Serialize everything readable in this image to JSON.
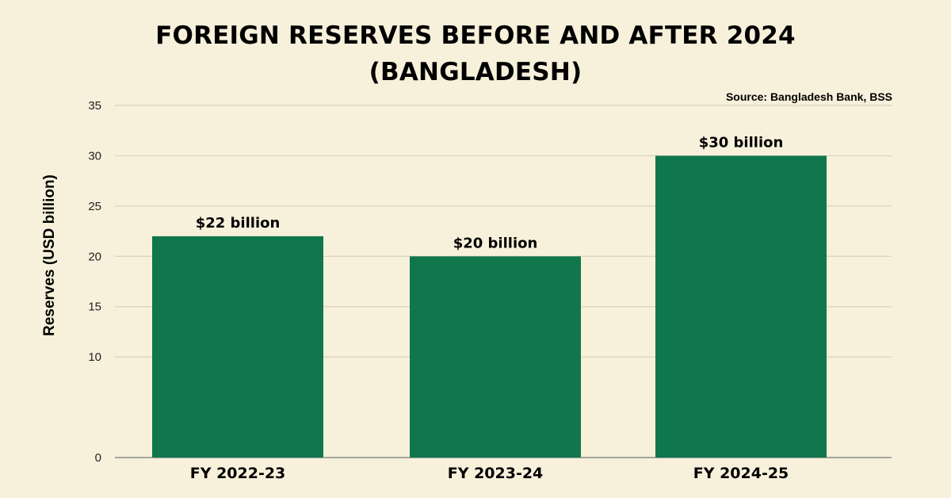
{
  "title_line1": "FOREIGN RESERVES BEFORE AND AFTER 2024",
  "title_line2": "(BANGLADESH)",
  "source": "Source: Bangladesh Bank, BSS",
  "colors": {
    "background": "#f7f1db",
    "bar": "#10764b",
    "grid": "#d8d2bd",
    "axis": "#8a8a8a"
  },
  "chart_data": {
    "type": "bar",
    "title": "FOREIGN RESERVES BEFORE AND AFTER 2024 (BANGLADESH)",
    "xlabel": "",
    "ylabel": "Reserves (USD billion)",
    "ylim": [
      0,
      35
    ],
    "yticks": [
      0,
      10,
      15,
      20,
      25,
      30,
      35
    ],
    "grid": true,
    "categories": [
      "FY 2022-23",
      "FY 2023-24",
      "FY 2024-25"
    ],
    "values": [
      22,
      20,
      30
    ],
    "data_labels": [
      "$22 billion",
      "$20 billion",
      "$30 billion"
    ]
  }
}
